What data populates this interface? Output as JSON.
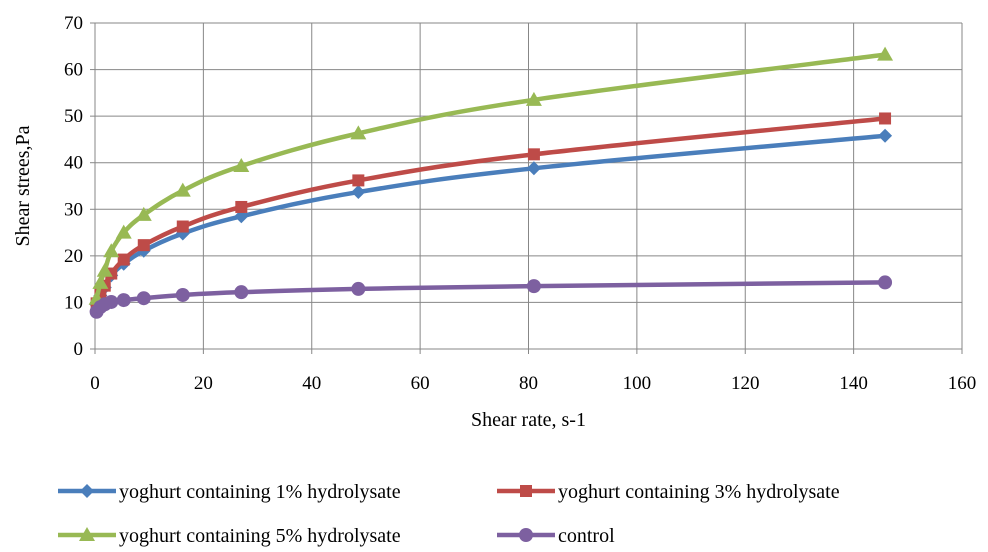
{
  "chart_data": {
    "type": "line",
    "title": "",
    "xlabel": "Shear rate, s-1",
    "ylabel": "Shear strees,Pa",
    "xlim": [
      0,
      160
    ],
    "ylim": [
      0,
      70
    ],
    "xticks": [
      0,
      20,
      40,
      60,
      80,
      100,
      120,
      140,
      160
    ],
    "yticks": [
      0,
      10,
      20,
      30,
      40,
      50,
      60,
      70
    ],
    "grid": true,
    "legend_position": "bottom",
    "series": [
      {
        "name": "yoghurt containing 1% hydrolysate",
        "color": "#4a7ebb",
        "marker": "diamond",
        "points": [
          [
            0.3,
            9.5
          ],
          [
            1,
            11.5
          ],
          [
            1.8,
            13.2
          ],
          [
            3,
            15.8
          ],
          [
            5.3,
            18.3
          ],
          [
            9,
            21.1
          ],
          [
            16.2,
            24.8
          ],
          [
            27,
            28.5
          ],
          [
            48.6,
            33.7
          ],
          [
            81,
            38.8
          ],
          [
            145.8,
            45.8
          ]
        ]
      },
      {
        "name": "yoghurt containing 3% hydrolysate",
        "color": "#be4b48",
        "marker": "square",
        "points": [
          [
            0.3,
            9.8
          ],
          [
            1,
            11.8
          ],
          [
            1.8,
            13.6
          ],
          [
            3,
            16.2
          ],
          [
            5.3,
            19.2
          ],
          [
            9,
            22.3
          ],
          [
            16.2,
            26.3
          ],
          [
            27,
            30.5
          ],
          [
            48.6,
            36.2
          ],
          [
            81,
            41.8
          ],
          [
            145.8,
            49.5
          ]
        ]
      },
      {
        "name": "yoghurt containing 5% hydrolysate",
        "color": "#98b954",
        "marker": "triangle",
        "points": [
          [
            0.3,
            10.8
          ],
          [
            1,
            14.2
          ],
          [
            1.8,
            16.8
          ],
          [
            3,
            21
          ],
          [
            5.3,
            25
          ],
          [
            9,
            28.8
          ],
          [
            16.2,
            34
          ],
          [
            27,
            39.3
          ],
          [
            48.6,
            46.3
          ],
          [
            81,
            53.5
          ],
          [
            145.8,
            63.2
          ]
        ]
      },
      {
        "name": "control",
        "color": "#7d60a0",
        "marker": "circle",
        "points": [
          [
            0.3,
            8
          ],
          [
            1,
            9
          ],
          [
            1.8,
            9.6
          ],
          [
            3,
            10.1
          ],
          [
            5.3,
            10.5
          ],
          [
            9,
            10.9
          ],
          [
            16.2,
            11.6
          ],
          [
            27,
            12.2
          ],
          [
            48.6,
            12.9
          ],
          [
            81,
            13.5
          ],
          [
            145.8,
            14.3
          ]
        ]
      }
    ]
  }
}
